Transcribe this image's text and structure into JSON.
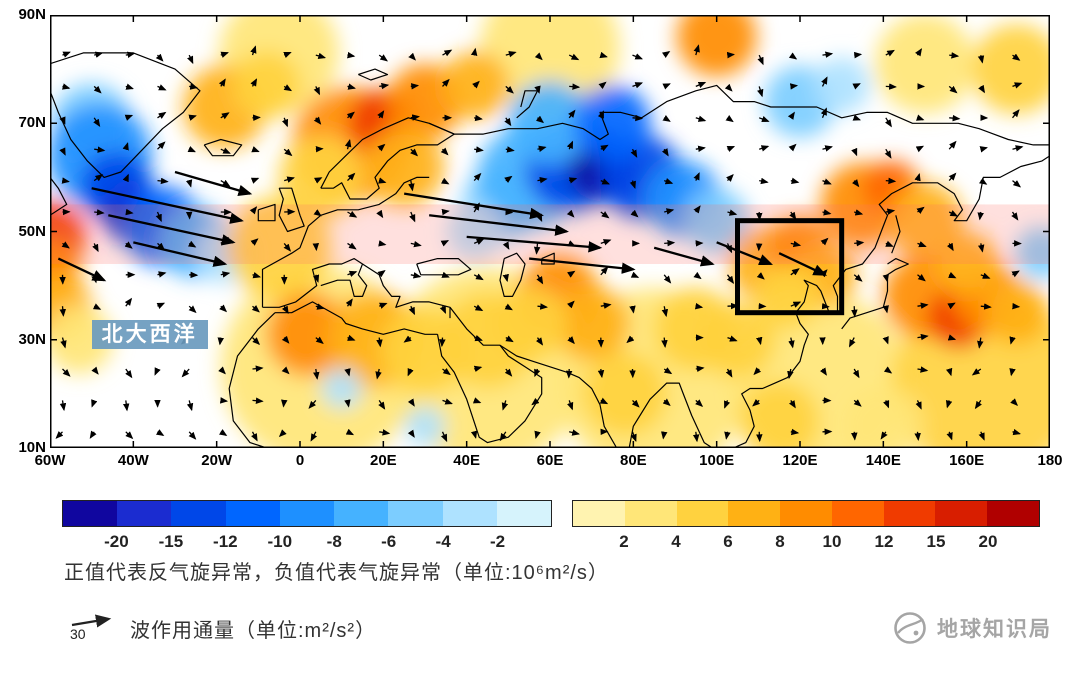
{
  "chart_data": {
    "type": "heatmap",
    "subtype": "filled-contour-map-with-wave-activity-flux-vectors",
    "x_axis": {
      "range": [
        -60,
        180
      ],
      "ticks": [
        {
          "v": -60,
          "label": "60W"
        },
        {
          "v": -40,
          "label": "40W"
        },
        {
          "v": -20,
          "label": "20W"
        },
        {
          "v": 0,
          "label": "0"
        },
        {
          "v": 20,
          "label": "20E"
        },
        {
          "v": 40,
          "label": "40E"
        },
        {
          "v": 60,
          "label": "60E"
        },
        {
          "v": 80,
          "label": "80E"
        },
        {
          "v": 100,
          "label": "100E"
        },
        {
          "v": 120,
          "label": "120E"
        },
        {
          "v": 140,
          "label": "140E"
        },
        {
          "v": 160,
          "label": "160E"
        },
        {
          "v": 180,
          "label": "180"
        }
      ]
    },
    "y_axis": {
      "range": [
        10,
        90
      ],
      "ticks": [
        {
          "v": 90,
          "label": "90N"
        },
        {
          "v": 70,
          "label": "70N"
        },
        {
          "v": 50,
          "label": "50N"
        },
        {
          "v": 30,
          "label": "30N"
        },
        {
          "v": 10,
          "label": "10N"
        }
      ]
    },
    "colorbar": {
      "negative": {
        "colors": [
          "#10069f",
          "#1b2cd0",
          "#0047e8",
          "#0066ff",
          "#1e90ff",
          "#45b2ff",
          "#7ccdff",
          "#aee2ff",
          "#d6f3fc"
        ],
        "labels": [
          "-20",
          "-15",
          "-12",
          "-10",
          "-8",
          "-6",
          "-4",
          "-2"
        ]
      },
      "positive": {
        "colors": [
          "#fff3b0",
          "#ffe678",
          "#ffd23f",
          "#ffb114",
          "#ff8c00",
          "#ff6600",
          "#f03b00",
          "#d81e00",
          "#b00000"
        ],
        "labels": [
          "2",
          "4",
          "6",
          "8",
          "10",
          "12",
          "15",
          "20"
        ]
      }
    },
    "anomaly_centers": [
      [
        5,
        25,
        3,
        100
      ],
      [
        45,
        25,
        3,
        100
      ],
      [
        85,
        22,
        3,
        95
      ],
      [
        125,
        22,
        3,
        90
      ],
      [
        165,
        22,
        4,
        95
      ],
      [
        -5,
        83,
        3,
        60
      ],
      [
        60,
        84,
        3,
        70
      ],
      [
        100,
        86,
        8,
        40
      ],
      [
        150,
        81,
        2,
        50
      ],
      [
        172,
        80,
        4,
        45
      ],
      [
        -50,
        70,
        -4,
        40
      ],
      [
        -48,
        64,
        -8,
        52
      ],
      [
        -44,
        58,
        -12,
        36
      ],
      [
        -40,
        53,
        -15,
        30
      ],
      [
        -33,
        51,
        -10,
        40
      ],
      [
        -25,
        48,
        -6,
        36
      ],
      [
        -18,
        46,
        -2,
        30
      ],
      [
        -60,
        49,
        12,
        36
      ],
      [
        -60,
        43,
        8,
        30
      ],
      [
        -58,
        36,
        6,
        34
      ],
      [
        -53,
        30,
        3,
        34
      ],
      [
        -18,
        73,
        6,
        42
      ],
      [
        -8,
        77,
        4,
        34
      ],
      [
        12,
        66,
        8,
        58
      ],
      [
        20,
        70,
        12,
        34
      ],
      [
        30,
        74,
        8,
        38
      ],
      [
        42,
        77,
        6,
        34
      ],
      [
        25,
        62,
        6,
        40
      ],
      [
        5,
        60,
        4,
        42
      ],
      [
        -5,
        47,
        4,
        52
      ],
      [
        2,
        31,
        8,
        42
      ],
      [
        18,
        30,
        6,
        48
      ],
      [
        30,
        28,
        4,
        44
      ],
      [
        45,
        30,
        4,
        48
      ],
      [
        48,
        55,
        -4,
        38
      ],
      [
        55,
        60,
        -6,
        52
      ],
      [
        65,
        62,
        -12,
        46
      ],
      [
        73,
        62,
        -20,
        36
      ],
      [
        82,
        60,
        -12,
        42
      ],
      [
        92,
        56,
        -8,
        38
      ],
      [
        100,
        52,
        -4,
        32
      ],
      [
        60,
        70,
        -6,
        42
      ],
      [
        75,
        70,
        -10,
        38
      ],
      [
        42,
        50,
        -2,
        28
      ],
      [
        62,
        38,
        8,
        42
      ],
      [
        70,
        33,
        6,
        38
      ],
      [
        55,
        33,
        4,
        38
      ],
      [
        78,
        20,
        4,
        42
      ],
      [
        95,
        32,
        4,
        42
      ],
      [
        105,
        30,
        4,
        38
      ],
      [
        112,
        44,
        6,
        38
      ],
      [
        120,
        47,
        8,
        32
      ],
      [
        126,
        42,
        6,
        32
      ],
      [
        117,
        38,
        4,
        32
      ],
      [
        135,
        55,
        8,
        42
      ],
      [
        142,
        58,
        10,
        28
      ],
      [
        150,
        52,
        6,
        38
      ],
      [
        150,
        38,
        8,
        42
      ],
      [
        158,
        34,
        12,
        30
      ],
      [
        165,
        38,
        8,
        36
      ],
      [
        172,
        35,
        6,
        32
      ],
      [
        160,
        44,
        6,
        32
      ],
      [
        178,
        46,
        -4,
        26
      ],
      [
        120,
        74,
        -4,
        36
      ],
      [
        130,
        77,
        -2,
        28
      ],
      [
        10,
        21,
        -2,
        20
      ],
      [
        30,
        14,
        -2,
        20
      ],
      [
        115,
        15,
        4,
        40
      ],
      [
        140,
        14,
        3,
        40
      ]
    ],
    "wave_flux_arrows": [
      [
        -50,
        58,
        -14,
        52
      ],
      [
        -46,
        53,
        -16,
        48
      ],
      [
        -40,
        48,
        -18,
        44
      ],
      [
        -58,
        45,
        -47,
        41
      ],
      [
        25,
        57,
        58,
        53
      ],
      [
        31,
        53,
        64,
        50
      ],
      [
        40,
        49,
        72,
        47
      ],
      [
        55,
        45,
        80,
        43
      ],
      [
        85,
        47,
        99,
        44
      ],
      [
        100,
        48,
        113,
        44
      ],
      [
        115,
        46,
        126,
        42
      ],
      [
        -30,
        61,
        -12,
        57
      ]
    ],
    "highlight_band": {
      "lat_min": 44,
      "lat_max": 55,
      "color": "rgba(255,115,105,0.22)"
    },
    "study_box": {
      "lon_min": 105,
      "lon_max": 130,
      "lat_min": 35,
      "lat_max": 52
    },
    "region_label": {
      "text": "北大西洋",
      "lon": -50,
      "lat": 33.6
    }
  },
  "caption": {
    "text": "正值代表反气旋异常，负值代表气旋异常（单位:10⁶m²/s）"
  },
  "legend": {
    "arrow_value": "30",
    "text": "波作用通量（单位:m²/s²）"
  },
  "watermark": {
    "text": "地球知识局"
  }
}
